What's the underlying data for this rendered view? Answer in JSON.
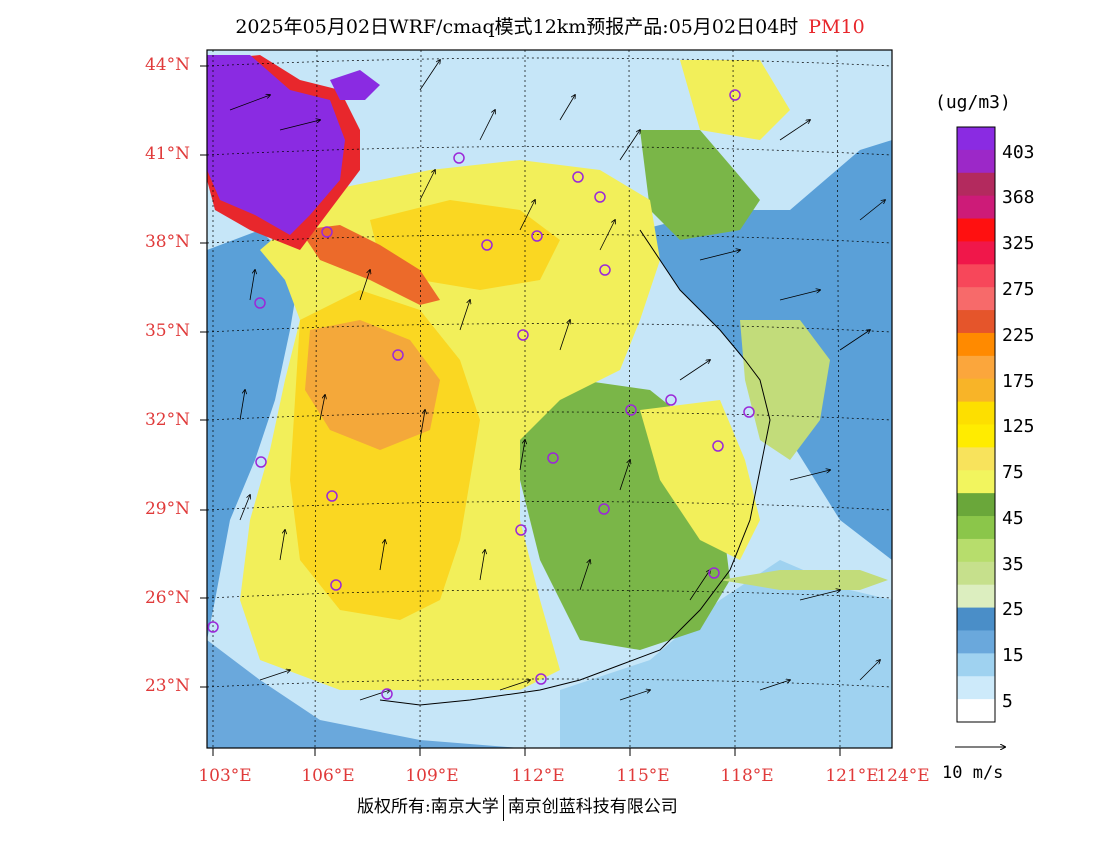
{
  "title": {
    "main": "2025年05月02日WRF/cmaq模式12km预报产品:05月02日04时",
    "variable": "PM10"
  },
  "map": {
    "lat_labels": [
      "44°N",
      "41°N",
      "38°N",
      "35°N",
      "32°N",
      "29°N",
      "26°N",
      "23°N"
    ],
    "lon_labels": [
      "103°E",
      "106°E",
      "109°E",
      "112°E",
      "115°E",
      "118°E",
      "121°E",
      "124°E"
    ],
    "colors": {
      "background_sea": "#d6eefb",
      "low_blue": "#5aa0d8",
      "green": "#7ab648",
      "light_green": "#c2dc7a",
      "yellow": "#f2ef5a",
      "gold": "#fad722",
      "orange": "#f4a83a",
      "dark_orange": "#ec6a2a",
      "red": "#e8272c",
      "purple": "#8a2be2",
      "city_marker": "#9b28d8"
    }
  },
  "legend": {
    "unit": "(ug/m3)",
    "levels": [
      "403",
      "368",
      "325",
      "275",
      "225",
      "175",
      "125",
      "75",
      "45",
      "35",
      "25",
      "15",
      "5"
    ],
    "swatch_colors": [
      "#8a2be2",
      "#9c28c8",
      "#b32a5e",
      "#cd1b78",
      "#ff1010",
      "#f0174a",
      "#f7475a",
      "#f76a6a",
      "#e5552b",
      "#ff8a00",
      "#fba63c",
      "#f8b428",
      "#fddf00",
      "#ffec00",
      "#f8e35c",
      "#f2f55e",
      "#6aa73a",
      "#8bc64a",
      "#b7dd6c",
      "#c6e08c",
      "#dceebf",
      "#4a8ec8",
      "#6aa8dc",
      "#9fd2f0",
      "#cdeafa",
      "#ffffff"
    ],
    "wind_reference": "10 m/s"
  },
  "footer": {
    "left": "版权所有:南京大学",
    "right": "南京创蓝科技有限公司"
  }
}
